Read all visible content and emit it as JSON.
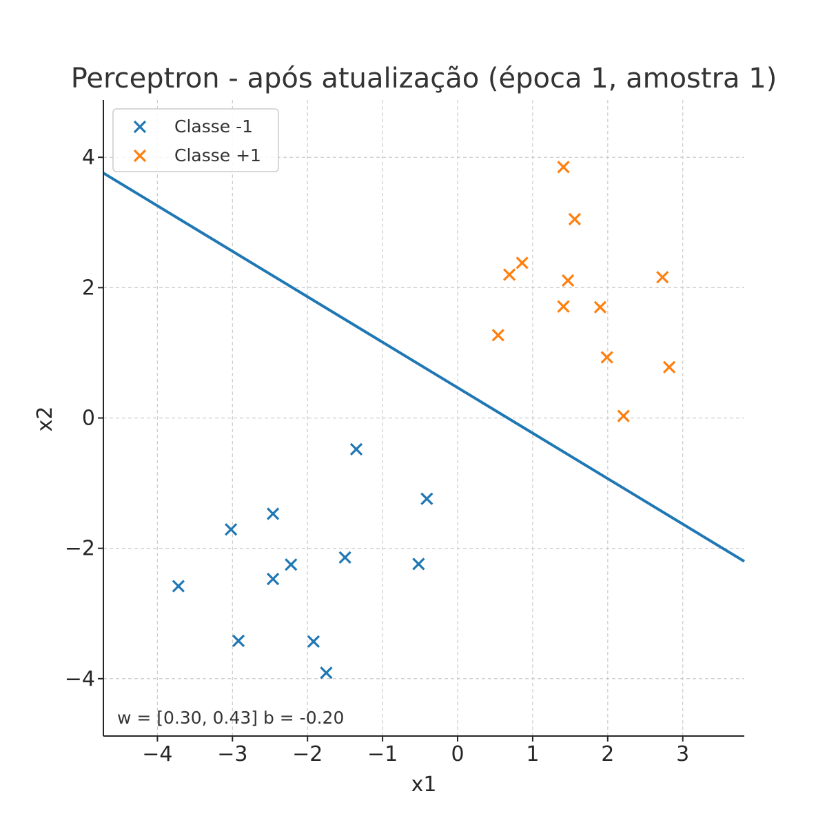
{
  "chart_data": {
    "type": "scatter",
    "title": "Perceptron - após atualização (época 1, amostra 1)",
    "xlabel": "x1",
    "ylabel": "x2",
    "xlim": [
      -4.72,
      3.82
    ],
    "ylim": [
      -4.88,
      4.88
    ],
    "xticks": [
      -4,
      -3,
      -2,
      -1,
      0,
      1,
      2,
      3
    ],
    "yticks": [
      -4,
      -2,
      0,
      2,
      4
    ],
    "xtick_labels": [
      "−4",
      "−3",
      "−2",
      "−1",
      "0",
      "1",
      "2",
      "3"
    ],
    "ytick_labels": [
      "−4",
      "−2",
      "0",
      "2",
      "4"
    ],
    "grid": true,
    "legend_position": "top-left",
    "series": [
      {
        "name": "Classe -1",
        "color": "#1f77b4",
        "marker": "x",
        "points": [
          [
            -1.35,
            -0.48
          ],
          [
            -0.41,
            -1.24
          ],
          [
            -2.46,
            -1.47
          ],
          [
            -3.02,
            -1.71
          ],
          [
            -2.22,
            -2.25
          ],
          [
            -1.5,
            -2.14
          ],
          [
            -0.52,
            -2.24
          ],
          [
            -2.46,
            -2.47
          ],
          [
            -3.72,
            -2.58
          ],
          [
            -2.92,
            -3.42
          ],
          [
            -1.92,
            -3.43
          ],
          [
            -1.75,
            -3.91
          ]
        ]
      },
      {
        "name": "Classe +1",
        "color": "#ff7f0e",
        "marker": "x",
        "points": [
          [
            1.41,
            3.85
          ],
          [
            1.56,
            3.05
          ],
          [
            0.86,
            2.38
          ],
          [
            0.69,
            2.2
          ],
          [
            1.47,
            2.11
          ],
          [
            2.73,
            2.16
          ],
          [
            1.41,
            1.71
          ],
          [
            1.9,
            1.7
          ],
          [
            0.54,
            1.27
          ],
          [
            1.99,
            0.93
          ],
          [
            2.82,
            0.78
          ],
          [
            2.21,
            0.03
          ]
        ]
      }
    ],
    "decision_boundary": {
      "w": [
        0.3,
        0.43
      ],
      "b": -0.2,
      "color": "#1f77b4"
    },
    "annotation": "w = [0.30, 0.43]  b = -0.20"
  }
}
